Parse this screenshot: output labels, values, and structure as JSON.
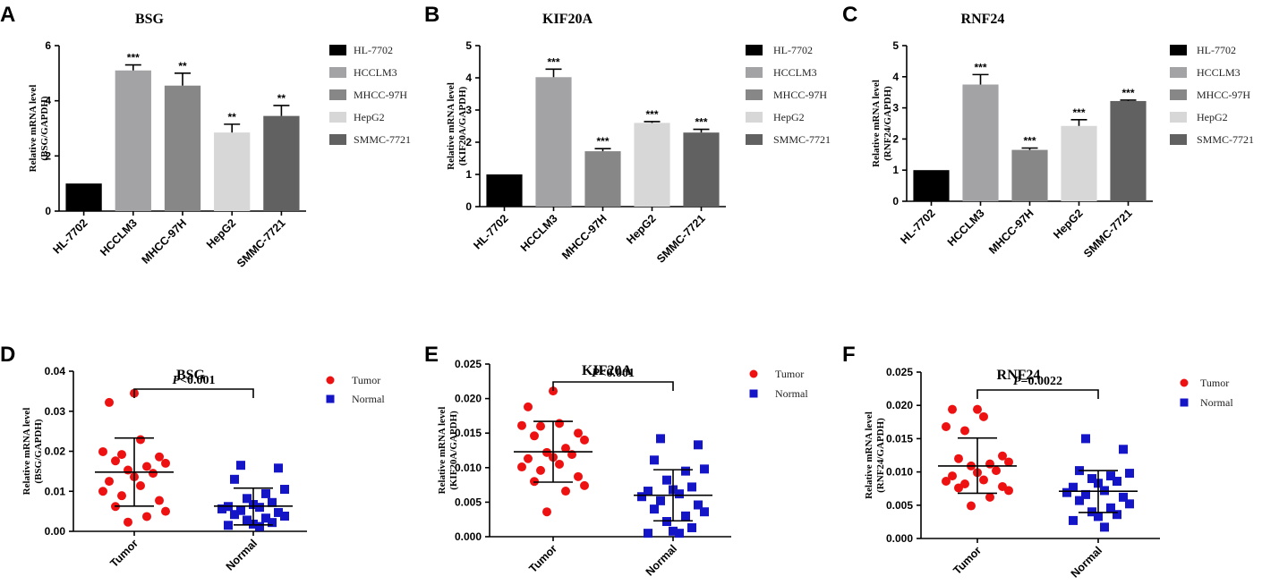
{
  "chart_data": [
    {
      "panel": "A",
      "type": "bar",
      "title": "BSG",
      "ylabel_lines": [
        "Relative mRNA level",
        "(BSG/GAPDH)"
      ],
      "ylim": [
        0,
        6
      ],
      "yticks": [
        0,
        2,
        4,
        6
      ],
      "ytick_labels": [
        "0",
        "2",
        "4",
        "6"
      ],
      "categories": [
        "HL-7702",
        "HCCLM3",
        "MHCC-97H",
        "HepG2",
        "SMMC-7721"
      ],
      "values": [
        1.0,
        5.1,
        4.55,
        2.85,
        3.45
      ],
      "errors": [
        0,
        0.2,
        0.45,
        0.3,
        0.38
      ],
      "significance": [
        "",
        "***",
        "**",
        "**",
        "**"
      ],
      "colors": [
        "#000000",
        "#a3a3a6",
        "#878787",
        "#d7d7d7",
        "#616161"
      ],
      "legend": [
        "HL-7702",
        "HCCLM3",
        "MHCC-97H",
        "HepG2",
        "SMMC-7721"
      ]
    },
    {
      "panel": "B",
      "type": "bar",
      "title": "KIF20A",
      "ylabel_lines": [
        "Relative mRNA level",
        "(KIF20A/GAPDH)"
      ],
      "ylim": [
        0,
        5
      ],
      "yticks": [
        0,
        1,
        2,
        3,
        4,
        5
      ],
      "ytick_labels": [
        "0",
        "1",
        "2",
        "3",
        "4",
        "5"
      ],
      "categories": [
        "HL-7702",
        "HCCLM3",
        "MHCC-97H",
        "HepG2",
        "SMMC-7721"
      ],
      "values": [
        1.0,
        4.02,
        1.72,
        2.6,
        2.3
      ],
      "errors": [
        0,
        0.25,
        0.08,
        0.04,
        0.1
      ],
      "significance": [
        "",
        "***",
        "***",
        "***",
        "***"
      ],
      "colors": [
        "#000000",
        "#a3a3a6",
        "#878787",
        "#d7d7d7",
        "#616161"
      ],
      "legend": [
        "HL-7702",
        "HCCLM3",
        "MHCC-97H",
        "HepG2",
        "SMMC-7721"
      ]
    },
    {
      "panel": "C",
      "type": "bar",
      "title": "RNF24",
      "ylabel_lines": [
        "Relative mRNA level",
        "(RNF24/GAPDH)"
      ],
      "ylim": [
        0,
        5
      ],
      "yticks": [
        0,
        1,
        2,
        3,
        4,
        5
      ],
      "ytick_labels": [
        "0",
        "1",
        "2",
        "3",
        "4",
        "5"
      ],
      "categories": [
        "HL-7702",
        "HCCLM3",
        "MHCC-97H",
        "HepG2",
        "SMMC-7721"
      ],
      "values": [
        1.0,
        3.75,
        1.65,
        2.42,
        3.22
      ],
      "errors": [
        0,
        0.32,
        0.06,
        0.2,
        0.03
      ],
      "significance": [
        "",
        "***",
        "***",
        "***",
        "***"
      ],
      "colors": [
        "#000000",
        "#a3a3a6",
        "#878787",
        "#d7d7d7",
        "#616161"
      ],
      "legend": [
        "HL-7702",
        "HCCLM3",
        "MHCC-97H",
        "HepG2",
        "SMMC-7721"
      ]
    },
    {
      "panel": "D",
      "type": "scatter",
      "title": "BSG",
      "ylabel_lines": [
        "Relative mRNA level",
        "(BSG/GAPDH)"
      ],
      "ylim": [
        0,
        0.04
      ],
      "yticks": [
        0,
        0.01,
        0.02,
        0.03,
        0.04
      ],
      "ytick_labels": [
        "0.00",
        "0.01",
        "0.02",
        "0.03",
        "0.04"
      ],
      "categories": [
        "Tumor",
        "Normal"
      ],
      "pvalue": {
        "italic": "P",
        "rest": "<0.001"
      },
      "legend": [
        "Tumor",
        "Normal"
      ],
      "series": [
        {
          "name": "Tumor",
          "color": "#ee1111",
          "marker": "circle",
          "mean": 0.0148,
          "sd_low": 0.0063,
          "sd_high": 0.0233,
          "values": [
            0.0345,
            0.0322,
            0.0229,
            0.0199,
            0.0192,
            0.0186,
            0.0176,
            0.017,
            0.0162,
            0.0153,
            0.0145,
            0.0136,
            0.0125,
            0.0114,
            0.01,
            0.0089,
            0.0077,
            0.0062,
            0.005,
            0.0037,
            0.0023
          ]
        },
        {
          "name": "Normal",
          "color": "#1515c8",
          "marker": "square",
          "mean": 0.0063,
          "sd_low": 0.0016,
          "sd_high": 0.0108,
          "values": [
            0.0165,
            0.0158,
            0.013,
            0.0105,
            0.0094,
            0.0082,
            0.0072,
            0.0067,
            0.0062,
            0.006,
            0.0056,
            0.0052,
            0.0047,
            0.0042,
            0.0038,
            0.0033,
            0.0028,
            0.0022,
            0.0018,
            0.0015,
            0.0012
          ]
        }
      ]
    },
    {
      "panel": "E",
      "type": "scatter",
      "title": "KIF20A",
      "ylabel_lines": [
        "Relative mRNA level",
        "(KIF20A/GAPDH)"
      ],
      "ylim": [
        0,
        0.025
      ],
      "yticks": [
        0,
        0.005,
        0.01,
        0.015,
        0.02,
        0.025
      ],
      "ytick_labels": [
        "0.000",
        "0.005",
        "0.010",
        "0.015",
        "0.020",
        "0.025"
      ],
      "categories": [
        "Tumor",
        "Normal"
      ],
      "pvalue": {
        "italic": "P",
        "rest": "<0.001"
      },
      "legend": [
        "Tumor",
        "Normal"
      ],
      "series": [
        {
          "name": "Tumor",
          "color": "#ee1111",
          "marker": "circle",
          "mean": 0.0123,
          "sd_low": 0.0079,
          "sd_high": 0.0167,
          "values": [
            0.0211,
            0.0188,
            0.0164,
            0.0161,
            0.016,
            0.015,
            0.0146,
            0.014,
            0.0128,
            0.0122,
            0.0119,
            0.0115,
            0.0113,
            0.0105,
            0.0101,
            0.0096,
            0.0087,
            0.008,
            0.0074,
            0.0066,
            0.0036
          ]
        },
        {
          "name": "Normal",
          "color": "#1515c8",
          "marker": "square",
          "mean": 0.006,
          "sd_low": 0.0023,
          "sd_high": 0.0097,
          "values": [
            0.0142,
            0.0133,
            0.0111,
            0.0098,
            0.0095,
            0.0082,
            0.0072,
            0.0068,
            0.0066,
            0.0062,
            0.0058,
            0.0052,
            0.0046,
            0.004,
            0.0036,
            0.003,
            0.0022,
            0.0013,
            0.0008,
            0.0005,
            0.0005
          ]
        }
      ]
    },
    {
      "panel": "F",
      "type": "scatter",
      "title": "RNF24",
      "ylabel_lines": [
        "Relative mRNA level",
        "(RNF24/GAPDH)"
      ],
      "ylim": [
        0,
        0.025
      ],
      "yticks": [
        0,
        0.005,
        0.01,
        0.015,
        0.02,
        0.025
      ],
      "ytick_labels": [
        "0.000",
        "0.005",
        "0.010",
        "0.015",
        "0.020",
        "0.025"
      ],
      "categories": [
        "Tumor",
        "Normal"
      ],
      "pvalue": {
        "italic": "P",
        "rest": "=0.0022"
      },
      "legend": [
        "Tumor",
        "Normal"
      ],
      "series": [
        {
          "name": "Tumor",
          "color": "#ee1111",
          "marker": "circle",
          "mean": 0.0109,
          "sd_low": 0.0068,
          "sd_high": 0.0151,
          "values": [
            0.0194,
            0.0194,
            0.0183,
            0.0168,
            0.0162,
            0.0124,
            0.012,
            0.0115,
            0.0112,
            0.0109,
            0.0102,
            0.0099,
            0.0094,
            0.0088,
            0.0086,
            0.0082,
            0.0078,
            0.0076,
            0.0072,
            0.0062,
            0.0049
          ]
        },
        {
          "name": "Normal",
          "color": "#1515c8",
          "marker": "square",
          "mean": 0.0071,
          "sd_low": 0.0039,
          "sd_high": 0.0102,
          "values": [
            0.015,
            0.0134,
            0.0102,
            0.0098,
            0.0094,
            0.009,
            0.0086,
            0.0083,
            0.0077,
            0.0072,
            0.0069,
            0.0066,
            0.0062,
            0.0057,
            0.0052,
            0.0046,
            0.004,
            0.0036,
            0.0033,
            0.0027,
            0.0017
          ]
        }
      ]
    }
  ]
}
